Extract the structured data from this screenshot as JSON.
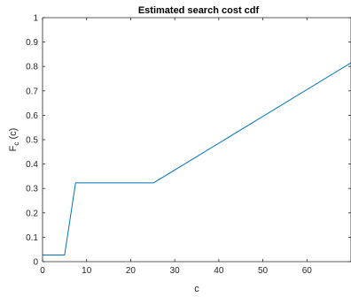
{
  "colors": {
    "line": "#0072BD",
    "axes": "#262626",
    "background": "#ffffff"
  },
  "chart_data": {
    "type": "line",
    "title": "Estimated search cost cdf",
    "xlabel": "c",
    "ylabel": "F",
    "ylabel_subscript": "c",
    "ylabel_suffix": " (c)",
    "xlim": [
      0,
      70
    ],
    "ylim": [
      0,
      1
    ],
    "xticks": [
      0,
      10,
      20,
      30,
      40,
      50,
      60
    ],
    "xtick_labels": [
      "0",
      "10",
      "20",
      "30",
      "40",
      "50",
      "60"
    ],
    "yticks": [
      0,
      0.1,
      0.2,
      0.3,
      0.4,
      0.5,
      0.6,
      0.7,
      0.8,
      0.9,
      1
    ],
    "ytick_labels": [
      "0",
      "0.1",
      "0.2",
      "0.3",
      "0.4",
      "0.5",
      "0.6",
      "0.7",
      "0.8",
      "0.9",
      "1"
    ],
    "grid": false,
    "series": [
      {
        "x": [
          0,
          5,
          7.5,
          25.2,
          70
        ],
        "y": [
          0.027,
          0.027,
          0.323,
          0.323,
          0.815
        ]
      }
    ]
  }
}
